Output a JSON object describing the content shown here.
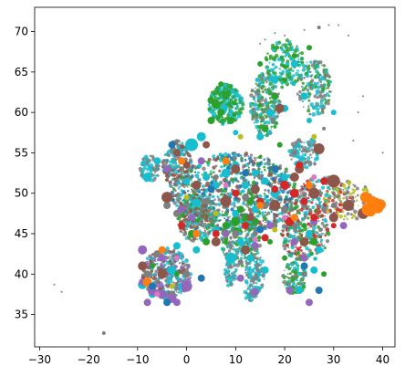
{
  "chart_data": {
    "type": "scatter",
    "title": "",
    "xlabel": "",
    "ylabel": "",
    "xlim": [
      -31,
      42.5
    ],
    "ylim": [
      31,
      73
    ],
    "xticks": [
      -30,
      -20,
      -10,
      0,
      10,
      20,
      30,
      40
    ],
    "yticks": [
      35,
      40,
      45,
      50,
      55,
      60,
      65,
      70
    ],
    "xtick_labels": [
      "−30",
      "−20",
      "−10",
      "0",
      "10",
      "20",
      "30",
      "40"
    ],
    "ytick_labels": [
      "35",
      "40",
      "45",
      "50",
      "55",
      "60",
      "65",
      "70"
    ],
    "grid": false,
    "legend": "none",
    "palette": [
      "#1f77b4",
      "#ff7f0e",
      "#2ca02c",
      "#d62728",
      "#9467bd",
      "#8c564b",
      "#e377c2",
      "#7f7f7f",
      "#bcbd22",
      "#17becf"
    ],
    "series": [
      {
        "color": "#17becf",
        "points": [
          [
            -8,
            52,
            5
          ],
          [
            -6,
            54,
            4
          ],
          [
            -9,
            38.7,
            5
          ],
          [
            -7,
            37.5,
            4
          ],
          [
            -3,
            40.5,
            5
          ],
          [
            -5,
            42,
            4
          ],
          [
            0,
            51.5,
            4
          ],
          [
            2,
            48.8,
            5
          ],
          [
            4,
            52,
            4
          ],
          [
            6,
            51,
            4
          ],
          [
            8,
            52.5,
            5
          ],
          [
            10,
            53.5,
            4
          ],
          [
            12,
            51,
            4
          ],
          [
            14,
            52.5,
            4
          ],
          [
            16,
            51.5,
            4
          ],
          [
            18,
            50,
            5
          ],
          [
            20,
            52,
            4
          ],
          [
            10,
            47.5,
            4
          ],
          [
            14,
            48,
            4
          ],
          [
            6,
            45.5,
            4
          ],
          [
            11,
            44,
            4
          ],
          [
            13,
            42,
            4
          ],
          [
            16,
            40.5,
            4
          ],
          [
            25,
            45,
            4
          ],
          [
            27,
            43,
            4
          ],
          [
            23,
            38,
            4
          ],
          [
            26,
            40.5,
            4
          ],
          [
            17,
            60,
            4
          ],
          [
            20,
            60.5,
            4
          ],
          [
            24,
            62,
            4
          ],
          [
            15,
            57,
            4
          ],
          [
            10,
            57.5,
            3
          ],
          [
            18,
            64,
            4
          ],
          [
            22,
            66,
            4
          ],
          [
            25,
            59,
            3
          ],
          [
            9,
            42,
            6
          ],
          [
            2,
            43,
            4
          ],
          [
            -2,
            43.5,
            4
          ],
          [
            3,
            57,
            5
          ],
          [
            1,
            56,
            7
          ],
          [
            30,
            60,
            3
          ],
          [
            -1,
            38.5,
            4
          ]
        ]
      },
      {
        "color": "#2ca02c",
        "points": [
          [
            6,
            61,
            5
          ],
          [
            7,
            60,
            4
          ],
          [
            8,
            62,
            4
          ],
          [
            5,
            59,
            4
          ],
          [
            9,
            59,
            4
          ],
          [
            10,
            46.5,
            5
          ],
          [
            12,
            47,
            4
          ],
          [
            14,
            46.5,
            4
          ],
          [
            8,
            46,
            4
          ],
          [
            11,
            48,
            4
          ],
          [
            16,
            58,
            4
          ],
          [
            18,
            62,
            4
          ],
          [
            20,
            64,
            3
          ],
          [
            22,
            67,
            3
          ],
          [
            25,
            68,
            3
          ],
          [
            15,
            66,
            3
          ],
          [
            19,
            56,
            3
          ],
          [
            26,
            44,
            4
          ],
          [
            24,
            46,
            3
          ],
          [
            20,
            42,
            3
          ],
          [
            1,
            45,
            4
          ],
          [
            4,
            44,
            4
          ],
          [
            -2,
            40,
            3
          ],
          [
            13,
            49,
            4
          ],
          [
            28,
            40,
            3
          ],
          [
            17,
            44,
            3
          ],
          [
            5,
            61.5,
            4
          ],
          [
            10,
            45.5,
            3
          ],
          [
            -7,
            41,
            3
          ],
          [
            7,
            63.5,
            3
          ]
        ]
      },
      {
        "color": "#7f7f7f",
        "points": [
          [
            4,
            49,
            4
          ],
          [
            8,
            48.5,
            4
          ],
          [
            12,
            49.5,
            4
          ],
          [
            16,
            48.5,
            4
          ],
          [
            20,
            48,
            4
          ],
          [
            24,
            48.5,
            3
          ],
          [
            28,
            48,
            3
          ],
          [
            30,
            48.5,
            3
          ],
          [
            34,
            49,
            2
          ],
          [
            -2,
            47.5,
            4
          ],
          [
            -4,
            48.5,
            4
          ],
          [
            -6,
            42.5,
            4
          ],
          [
            -8,
            40,
            4
          ],
          [
            -3,
            37.5,
            4
          ],
          [
            0,
            40,
            4
          ],
          [
            10,
            45,
            4
          ],
          [
            14,
            45,
            3
          ],
          [
            18,
            46,
            3
          ],
          [
            22,
            46,
            3
          ],
          [
            26,
            46.5,
            3
          ],
          [
            24,
            40,
            3
          ],
          [
            30,
            50,
            2
          ],
          [
            28,
            58,
            2
          ],
          [
            26,
            56,
            2
          ],
          [
            22,
            55,
            3
          ],
          [
            6,
            52,
            3
          ],
          [
            2,
            51,
            4
          ],
          [
            -1,
            53,
            3
          ],
          [
            11,
            41.5,
            3
          ],
          [
            15,
            52,
            3
          ]
        ]
      },
      {
        "color": "#8c564b",
        "points": [
          [
            -4,
            49.5,
            6
          ],
          [
            2,
            51,
            5
          ],
          [
            8,
            49,
            6
          ],
          [
            14,
            50.5,
            5
          ],
          [
            18,
            48.5,
            6
          ],
          [
            22,
            52,
            5
          ],
          [
            26,
            50,
            6
          ],
          [
            30,
            51.5,
            7
          ],
          [
            33,
            48.5,
            6
          ],
          [
            36,
            47.5,
            6
          ],
          [
            27,
            55.5,
            6
          ],
          [
            23,
            53,
            5
          ],
          [
            -5,
            40,
            5
          ],
          [
            -9,
            41,
            5
          ],
          [
            6,
            44,
            5
          ],
          [
            12,
            43,
            5
          ],
          [
            24,
            44,
            5
          ],
          [
            30,
            47,
            5
          ],
          [
            19,
            60.5,
            5
          ],
          [
            4,
            56,
            4
          ],
          [
            0,
            53.5,
            4
          ],
          [
            -2,
            55,
            4
          ],
          [
            10,
            53,
            5
          ],
          [
            13,
            47,
            4
          ]
        ]
      },
      {
        "color": "#9467bd",
        "points": [
          [
            -5,
            37.5,
            5
          ],
          [
            -3,
            37,
            5
          ],
          [
            -7,
            37.9,
            5
          ],
          [
            0,
            38.5,
            6
          ],
          [
            -9,
            43,
            5
          ],
          [
            -8,
            36.5,
            4
          ],
          [
            -2,
            36.5,
            4
          ],
          [
            -5,
            42,
            4
          ],
          [
            8,
            45,
            4
          ],
          [
            17,
            46,
            4
          ],
          [
            26,
            46.5,
            4
          ],
          [
            24,
            42,
            4
          ],
          [
            21,
            38,
            4
          ],
          [
            -9,
            39,
            4
          ],
          [
            1,
            47,
            4
          ],
          [
            11,
            39.5,
            4
          ],
          [
            14,
            43.5,
            4
          ],
          [
            -1,
            48,
            4
          ],
          [
            22,
            44,
            4
          ],
          [
            32,
            46,
            4
          ],
          [
            3,
            54,
            4
          ],
          [
            25,
            36.5,
            4
          ],
          [
            14,
            37.8,
            4
          ],
          [
            -4,
            53,
            4
          ]
        ]
      },
      {
        "color": "#d62728",
        "points": [
          [
            20,
            51,
            5
          ],
          [
            22,
            50,
            5
          ],
          [
            24,
            49,
            4
          ],
          [
            21,
            46.5,
            5
          ],
          [
            18,
            50.5,
            4
          ],
          [
            6,
            45,
            4
          ],
          [
            12,
            46,
            4
          ],
          [
            26,
            47,
            4
          ],
          [
            28,
            51.5,
            4
          ],
          [
            15,
            49,
            4
          ],
          [
            10,
            50,
            4
          ],
          [
            16,
            44.5,
            4
          ],
          [
            -1,
            46,
            4
          ],
          [
            30,
            46,
            3
          ],
          [
            23,
            53.5,
            4
          ]
        ]
      },
      {
        "color": "#ff7f0e",
        "points": [
          [
            37,
            48,
            7
          ],
          [
            38,
            48.5,
            7
          ],
          [
            39,
            48.2,
            6
          ],
          [
            38.5,
            48.8,
            6
          ],
          [
            39.5,
            48.6,
            6
          ],
          [
            37.5,
            47.8,
            6
          ],
          [
            36.5,
            49.5,
            6
          ],
          [
            37.8,
            49,
            6
          ],
          [
            -8,
            39,
            5
          ],
          [
            8,
            54,
            4
          ],
          [
            2,
            45,
            4
          ],
          [
            -5,
            43,
            4
          ],
          [
            15,
            48.5,
            4
          ],
          [
            25,
            51,
            4
          ],
          [
            -1,
            54,
            4
          ],
          [
            22,
            47,
            4
          ]
        ]
      },
      {
        "color": "#1f77b4",
        "points": [
          [
            -4,
            36.5,
            4
          ],
          [
            -7,
            38.5,
            4
          ],
          [
            3,
            39.5,
            4
          ],
          [
            12,
            52.5,
            4
          ],
          [
            18,
            53,
            4
          ],
          [
            5,
            50.5,
            4
          ],
          [
            -3,
            56,
            4
          ],
          [
            27,
            38,
            4
          ],
          [
            15,
            45.5,
            4
          ],
          [
            24,
            41,
            4
          ]
        ]
      },
      {
        "color": "#e377c2",
        "points": [
          [
            -6,
            37.5,
            3
          ],
          [
            20,
            47,
            3
          ],
          [
            8,
            51,
            3
          ],
          [
            14,
            44.3,
            3
          ],
          [
            -2,
            42,
            3
          ],
          [
            26,
            52,
            3
          ]
        ]
      },
      {
        "color": "#bcbd22",
        "points": [
          [
            6,
            47.5,
            3
          ],
          [
            18,
            45.5,
            3
          ],
          [
            -3,
            38.5,
            3
          ],
          [
            26,
            57,
            3
          ],
          [
            11,
            57,
            3
          ],
          [
            0,
            49.5,
            3
          ]
        ]
      },
      {
        "color": "#7f7f7f",
        "points": [
          [
            -27,
            38.7,
            1
          ],
          [
            -25.5,
            37.8,
            1
          ],
          [
            -16.9,
            32.7,
            2
          ],
          [
            35,
            60,
            1
          ],
          [
            40,
            55,
            1
          ],
          [
            33,
            69.5,
            1
          ],
          [
            29,
            70.8,
            1
          ],
          [
            27,
            70.5,
            2
          ],
          [
            24,
            70.2,
            1
          ],
          [
            31,
            70.8,
            1
          ],
          [
            20,
            69.5,
            1
          ],
          [
            16,
            69,
            1
          ],
          [
            15,
            68.5,
            1
          ],
          [
            18,
            69.8,
            1
          ],
          [
            36,
            62,
            1
          ],
          [
            34,
            56.5,
            1
          ]
        ]
      }
    ]
  }
}
